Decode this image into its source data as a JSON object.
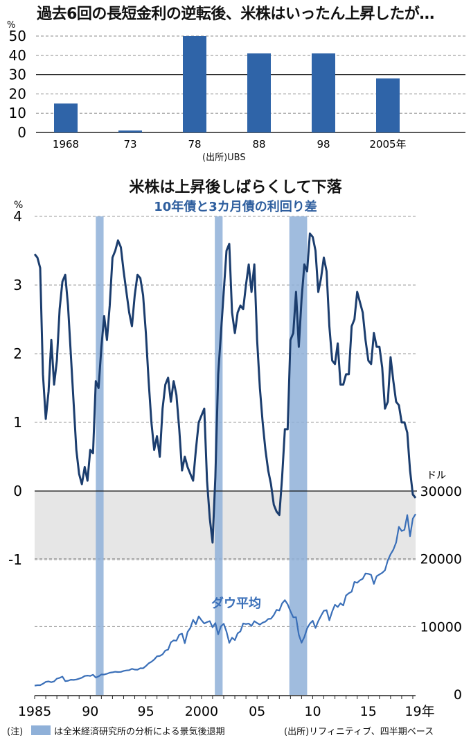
{
  "headline": "過去6回の長短金利の逆転後、米株はいったん上昇したが…",
  "chart_data": [
    {
      "type": "bar",
      "ylabel": "%",
      "ylim": [
        0,
        50
      ],
      "yticks": [
        0,
        10,
        20,
        30,
        40,
        50
      ],
      "reference_line": 30,
      "grid": true,
      "categories": [
        "1968",
        "73",
        "78",
        "88",
        "98",
        "2005年"
      ],
      "values": [
        15,
        1,
        50,
        41,
        41,
        28
      ],
      "bar_color": "#2f64a8",
      "source": "(出所)UBS"
    },
    {
      "type": "line",
      "title": "米株は上昇後しばらくして下落",
      "subtitle": "10年債と3カ月債の利回り差",
      "ylabel_left": "%",
      "ylabel_right": "ドル",
      "x_ticks": [
        "1985",
        "90",
        "95",
        "2000",
        "05",
        "10",
        "15",
        "19年"
      ],
      "x_range": [
        1985,
        2019.25
      ],
      "yleft_ticks": [
        4,
        3,
        2,
        1,
        0,
        -1
      ],
      "yleft_range": [
        -3,
        4
      ],
      "yright_ticks": [
        30000,
        20000,
        10000,
        0
      ],
      "yright_range": [
        0,
        30000
      ],
      "negative_band": [
        -1,
        0
      ],
      "recessions": [
        [
          1990.5,
          1991.2
        ],
        [
          2001.2,
          2001.9
        ],
        [
          2007.9,
          2009.5
        ]
      ],
      "legend_note": "は全米経済研究所の分析による景気後退期",
      "note_label": "(注)",
      "source": "(出所)リフィニティブ、四半期ベース",
      "series": [
        {
          "name": "10年債と3カ月債の利回り差",
          "axis": "left",
          "color": "#1b3d6e",
          "x": [
            1985.0,
            1985.25,
            1985.5,
            1985.75,
            1986.0,
            1986.25,
            1986.5,
            1986.75,
            1987.0,
            1987.25,
            1987.5,
            1987.75,
            1988.0,
            1988.25,
            1988.5,
            1988.75,
            1989.0,
            1989.25,
            1989.5,
            1989.75,
            1990.0,
            1990.25,
            1990.5,
            1990.75,
            1991.0,
            1991.25,
            1991.5,
            1991.75,
            1992.0,
            1992.25,
            1992.5,
            1992.75,
            1993.0,
            1993.25,
            1993.5,
            1993.75,
            1994.0,
            1994.25,
            1994.5,
            1994.75,
            1995.0,
            1995.25,
            1995.5,
            1995.75,
            1996.0,
            1996.25,
            1996.5,
            1996.75,
            1997.0,
            1997.25,
            1997.5,
            1997.75,
            1998.0,
            1998.25,
            1998.5,
            1998.75,
            1999.0,
            1999.25,
            1999.5,
            1999.75,
            2000.0,
            2000.25,
            2000.5,
            2000.75,
            2001.0,
            2001.25,
            2001.5,
            2001.75,
            2002.0,
            2002.25,
            2002.5,
            2002.75,
            2003.0,
            2003.25,
            2003.5,
            2003.75,
            2004.0,
            2004.25,
            2004.5,
            2004.75,
            2005.0,
            2005.25,
            2005.5,
            2005.75,
            2006.0,
            2006.25,
            2006.5,
            2006.75,
            2007.0,
            2007.25,
            2007.5,
            2007.75,
            2008.0,
            2008.25,
            2008.5,
            2008.75,
            2009.0,
            2009.25,
            2009.5,
            2009.75,
            2010.0,
            2010.25,
            2010.5,
            2010.75,
            2011.0,
            2011.25,
            2011.5,
            2011.75,
            2012.0,
            2012.25,
            2012.5,
            2012.75,
            2013.0,
            2013.25,
            2013.5,
            2013.75,
            2014.0,
            2014.25,
            2014.5,
            2014.75,
            2015.0,
            2015.25,
            2015.5,
            2015.75,
            2016.0,
            2016.25,
            2016.5,
            2016.75,
            2017.0,
            2017.25,
            2017.5,
            2017.75,
            2018.0,
            2018.25,
            2018.5,
            2018.75,
            2019.0,
            2019.25
          ],
          "values": [
            3.45,
            3.4,
            3.25,
            1.7,
            1.05,
            1.45,
            2.2,
            1.55,
            1.9,
            2.65,
            3.05,
            3.15,
            2.7,
            2.0,
            1.3,
            0.6,
            0.25,
            0.1,
            0.35,
            0.15,
            0.6,
            0.55,
            1.6,
            1.5,
            2.1,
            2.55,
            2.2,
            2.7,
            3.4,
            3.5,
            3.65,
            3.55,
            3.2,
            2.9,
            2.6,
            2.4,
            2.85,
            3.15,
            3.1,
            2.85,
            2.3,
            1.6,
            1.0,
            0.6,
            0.8,
            0.5,
            1.2,
            1.55,
            1.65,
            1.3,
            1.6,
            1.4,
            0.9,
            0.3,
            0.5,
            0.35,
            0.25,
            0.15,
            0.6,
            1.0,
            1.1,
            1.2,
            0.15,
            -0.4,
            -0.75,
            0.2,
            1.7,
            2.3,
            2.9,
            3.5,
            3.6,
            2.6,
            2.3,
            2.6,
            2.7,
            2.65,
            3.0,
            3.3,
            2.9,
            3.3,
            2.2,
            1.5,
            1.0,
            0.6,
            0.3,
            0.1,
            -0.2,
            -0.3,
            -0.35,
            0.2,
            0.9,
            0.9,
            2.2,
            2.3,
            2.9,
            2.1,
            2.8,
            3.3,
            3.2,
            3.75,
            3.7,
            3.5,
            2.9,
            3.1,
            3.4,
            3.2,
            2.4,
            1.9,
            1.85,
            2.15,
            1.55,
            1.55,
            1.7,
            1.7,
            2.4,
            2.5,
            2.9,
            2.75,
            2.6,
            2.2,
            1.9,
            1.85,
            2.3,
            2.1,
            2.1,
            1.8,
            1.2,
            1.3,
            1.95,
            1.6,
            1.3,
            1.25,
            1.0,
            1.0,
            0.85,
            0.3,
            -0.05,
            -0.1
          ]
        },
        {
          "name": "ダウ平均",
          "axis": "right",
          "color": "#3a6fb8",
          "x": [
            1985.0,
            1985.25,
            1985.5,
            1985.75,
            1986.0,
            1986.25,
            1986.5,
            1986.75,
            1987.0,
            1987.25,
            1987.5,
            1987.75,
            1988.0,
            1988.25,
            1988.5,
            1988.75,
            1989.0,
            1989.25,
            1989.5,
            1989.75,
            1990.0,
            1990.25,
            1990.5,
            1990.75,
            1991.0,
            1991.25,
            1991.5,
            1991.75,
            1992.0,
            1992.25,
            1992.5,
            1992.75,
            1993.0,
            1993.25,
            1993.5,
            1993.75,
            1994.0,
            1994.25,
            1994.5,
            1994.75,
            1995.0,
            1995.25,
            1995.5,
            1995.75,
            1996.0,
            1996.25,
            1996.5,
            1996.75,
            1997.0,
            1997.25,
            1997.5,
            1997.75,
            1998.0,
            1998.25,
            1998.5,
            1998.75,
            1999.0,
            1999.25,
            1999.5,
            1999.75,
            2000.0,
            2000.25,
            2000.5,
            2000.75,
            2001.0,
            2001.25,
            2001.5,
            2001.75,
            2002.0,
            2002.25,
            2002.5,
            2002.75,
            2003.0,
            2003.25,
            2003.5,
            2003.75,
            2004.0,
            2004.25,
            2004.5,
            2004.75,
            2005.0,
            2005.25,
            2005.5,
            2005.75,
            2006.0,
            2006.25,
            2006.5,
            2006.75,
            2007.0,
            2007.25,
            2007.5,
            2007.75,
            2008.0,
            2008.25,
            2008.5,
            2008.75,
            2009.0,
            2009.25,
            2009.5,
            2009.75,
            2010.0,
            2010.25,
            2010.5,
            2010.75,
            2011.0,
            2011.25,
            2011.5,
            2011.75,
            2012.0,
            2012.25,
            2012.5,
            2012.75,
            2013.0,
            2013.25,
            2013.5,
            2013.75,
            2014.0,
            2014.25,
            2014.5,
            2014.75,
            2015.0,
            2015.25,
            2015.5,
            2015.75,
            2016.0,
            2016.25,
            2016.5,
            2016.75,
            2017.0,
            2017.25,
            2017.5,
            2017.75,
            2018.0,
            2018.25,
            2018.5,
            2018.75,
            2019.0,
            2019.25
          ],
          "values": [
            1266,
            1335,
            1328,
            1547,
            1819,
            1893,
            1775,
            1896,
            2305,
            2419,
            2596,
            1939,
            1988,
            2142,
            2113,
            2169,
            2293,
            2440,
            2693,
            2753,
            2707,
            2881,
            2453,
            2634,
            2914,
            2907,
            3017,
            3169,
            3236,
            3319,
            3272,
            3301,
            3436,
            3516,
            3556,
            3754,
            3636,
            3625,
            3843,
            3834,
            4158,
            4556,
            4789,
            5117,
            5588,
            5655,
            5883,
            6448,
            6584,
            7673,
            7945,
            7908,
            8800,
            8952,
            7539,
            9181,
            9786,
            10971,
            10337,
            11497,
            10922,
            10448,
            10651,
            10787,
            9878,
            10502,
            8848,
            10022,
            10403,
            9243,
            7592,
            8342,
            7992,
            8985,
            9275,
            10454,
            10358,
            10435,
            10080,
            10783,
            10504,
            10275,
            10569,
            10718,
            11109,
            11150,
            11679,
            12463,
            12354,
            13409,
            13896,
            13265,
            12262,
            11350,
            11378,
            8776,
            7609,
            8447,
            9712,
            10428,
            10857,
            9774,
            10788,
            11578,
            12320,
            12414,
            10913,
            12218,
            13212,
            12880,
            13437,
            13104,
            14579,
            14910,
            15130,
            16577,
            16458,
            16827,
            17043,
            17823,
            17776,
            17620,
            16285,
            17425,
            17685,
            17930,
            18308,
            19763,
            20663,
            21350,
            22405,
            24719,
            24103,
            24271,
            26458,
            23327,
            25929,
            26600
          ]
        }
      ]
    }
  ]
}
